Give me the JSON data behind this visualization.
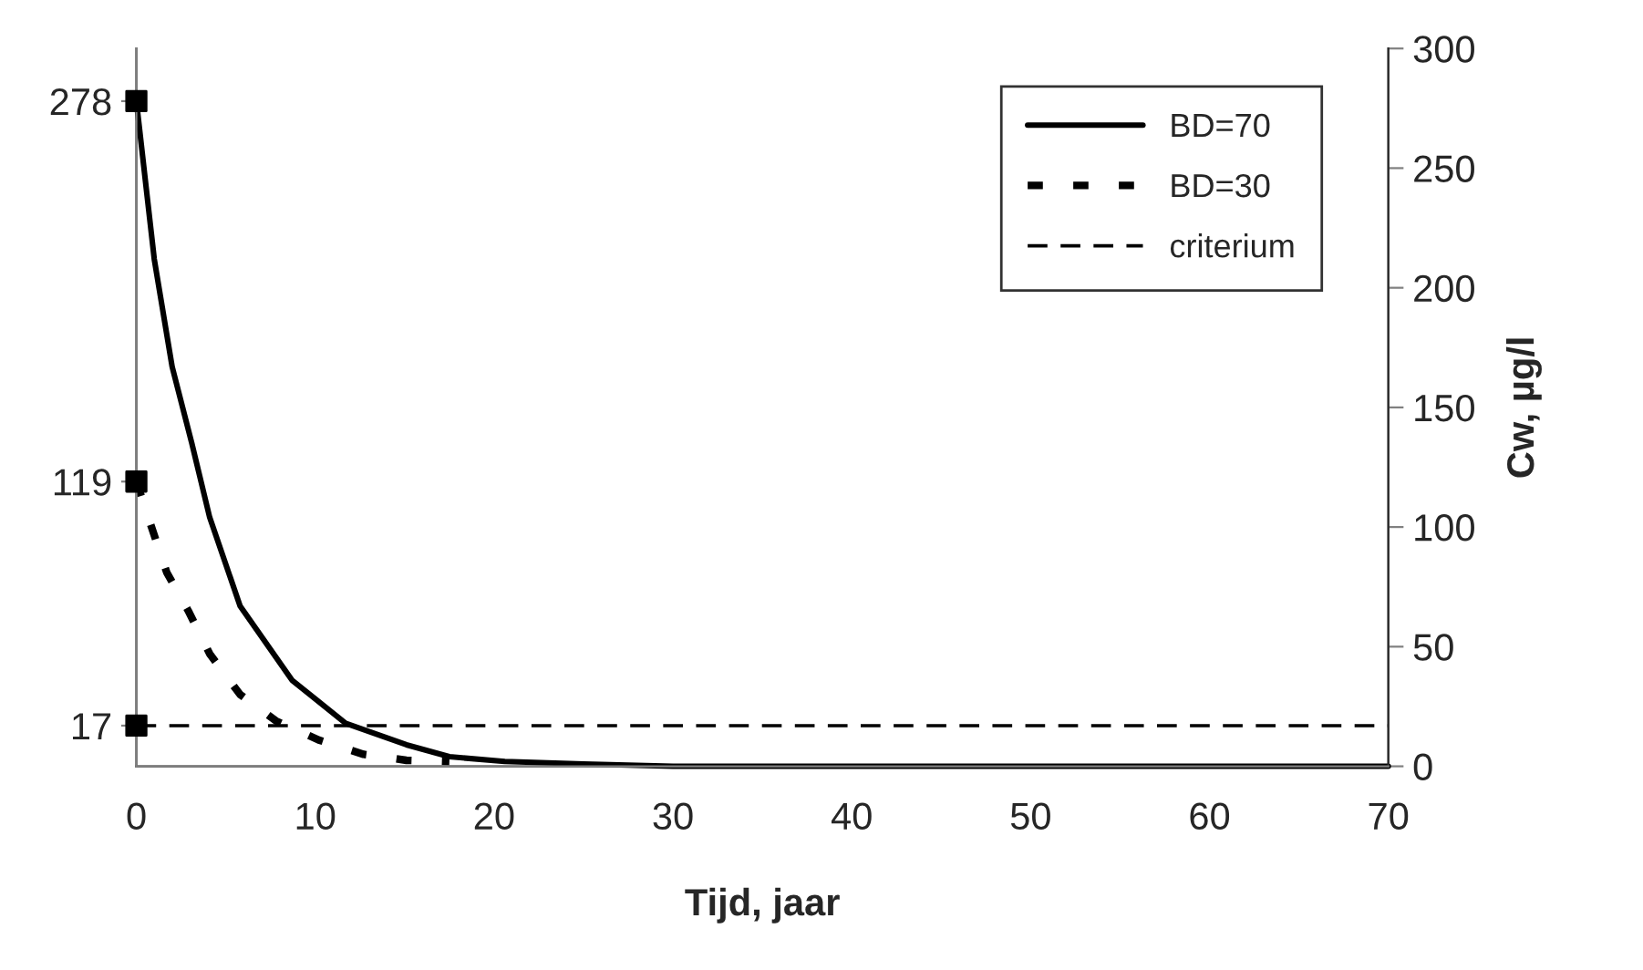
{
  "chart_data": {
    "type": "line",
    "xlabel": "Tijd, jaar",
    "y2label": "Cw, µg/l",
    "xlim": [
      0,
      70
    ],
    "xticks": [
      0,
      10,
      20,
      30,
      40,
      50,
      60,
      70
    ],
    "ylim": [
      0,
      300
    ],
    "yticks": [
      17,
      119,
      278
    ],
    "y2lim": [
      0,
      300
    ],
    "y2ticks": [
      0,
      50,
      100,
      150,
      200,
      250,
      300
    ],
    "grid": false,
    "legend": "top right",
    "series": [
      {
        "name": "BD=70",
        "color": "#000000",
        "line_style": "solid",
        "x": [
          0,
          1.0,
          2.0,
          3.1,
          4.1,
          5.8,
          8.7,
          11.7,
          15.1,
          17.5,
          20.6,
          25,
          30,
          40,
          50,
          60,
          70
        ],
        "values": [
          278,
          212,
          167,
          135,
          104,
          67,
          36,
          18,
          9,
          4,
          2,
          1,
          0,
          0,
          0,
          0,
          0
        ]
      },
      {
        "name": "BD=30",
        "color": "#000000",
        "line_style": "dotted",
        "x": [
          0,
          0.8,
          1.7,
          2.9,
          4.1,
          5.8,
          7.8,
          10.2,
          12.7,
          15.1,
          17.5
        ],
        "values": [
          119,
          101,
          81,
          65,
          47,
          30,
          19,
          11,
          5,
          2.5,
          2
        ]
      },
      {
        "name": "criterium",
        "color": "#000000",
        "line_style": "dashed",
        "x": [
          0,
          70
        ],
        "values": [
          17,
          17
        ]
      },
      {
        "type": "scatter",
        "marker": "square",
        "color": "#000000",
        "x": [
          0,
          0,
          0
        ],
        "values": [
          278,
          119,
          17
        ]
      }
    ]
  }
}
